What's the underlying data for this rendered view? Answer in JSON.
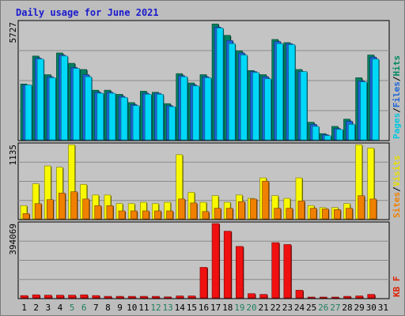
{
  "chart_data": {
    "type": "bar",
    "title": "Daily usage for June 2021",
    "categories": [
      "1",
      "2",
      "3",
      "4",
      "5",
      "6",
      "7",
      "8",
      "9",
      "10",
      "11",
      "12",
      "13",
      "14",
      "15",
      "16",
      "17",
      "18",
      "19",
      "20",
      "21",
      "22",
      "23",
      "24",
      "25",
      "26",
      "27",
      "28",
      "29",
      "30",
      "31"
    ],
    "weekend_days": [
      "5",
      "6",
      "12",
      "13",
      "19",
      "20",
      "26",
      "27"
    ],
    "panels": [
      {
        "name": "pages-files-hits",
        "max_label": "5727",
        "ymax": 5727,
        "legend": [
          {
            "text": "Pages",
            "color": "#00c8e0"
          },
          {
            "text": "/",
            "color": "#000000"
          },
          {
            "text": "Files",
            "color": "#1e64d8"
          },
          {
            "text": "/",
            "color": "#000000"
          },
          {
            "text": "Hits",
            "color": "#008860"
          }
        ],
        "series": [
          {
            "name": "Hits",
            "color": "#008060",
            "values": [
              2700,
              4050,
              3150,
              4200,
              3700,
              3400,
              2400,
              2400,
              2200,
              1800,
              2350,
              2300,
              1750,
              3200,
              2750,
              3150,
              5600,
              5050,
              4300,
              3350,
              3150,
              4850,
              4700,
              3400,
              850,
              300,
              650,
              1000,
              3000,
              4100,
              0
            ]
          },
          {
            "name": "Files",
            "color": "#1e64d8",
            "values": [
              2650,
              3950,
              3050,
              4100,
              3500,
              3150,
              2300,
              2300,
              2100,
              1700,
              2250,
              2250,
              1650,
              3100,
              2650,
              3050,
              5450,
              4800,
              4200,
              3300,
              3050,
              4750,
              4650,
              3300,
              750,
              250,
              550,
              900,
              2850,
              4000,
              0
            ]
          },
          {
            "name": "Pages",
            "color": "#00d8f8",
            "values": [
              2650,
              3900,
              3000,
              4050,
              3450,
              3050,
              2250,
              2250,
              2050,
              1650,
              2200,
              2200,
              1600,
              3050,
              2600,
              3000,
              5400,
              4650,
              4100,
              3250,
              2950,
              4650,
              4600,
              3300,
              650,
              200,
              500,
              750,
              2800,
              3900,
              0
            ]
          }
        ]
      },
      {
        "name": "sites-visits",
        "max_label": "1135",
        "ymax": 1135,
        "legend": [
          {
            "text": "Sites",
            "color": "#f08000"
          },
          {
            "text": "/",
            "color": "#000000"
          },
          {
            "text": "Visits",
            "color": "#e8e000"
          }
        ],
        "series": [
          {
            "name": "Visits",
            "color": "#f8f800",
            "values": [
              200,
              530,
              800,
              780,
              1120,
              520,
              360,
              360,
              230,
              230,
              250,
              230,
              250,
              970,
              400,
              250,
              350,
              250,
              360,
              310,
              620,
              350,
              310,
              620,
              200,
              170,
              170,
              230,
              1120,
              1070,
              0
            ]
          },
          {
            "name": "Sites",
            "color": "#f08000",
            "values": [
              80,
              230,
              290,
              390,
              410,
              300,
              200,
              200,
              120,
              120,
              120,
              120,
              120,
              300,
              240,
              110,
              160,
              160,
              260,
              300,
              570,
              160,
              160,
              270,
              160,
              150,
              140,
              160,
              350,
              300,
              0
            ]
          }
        ]
      },
      {
        "name": "kb-f",
        "max_label": "394069",
        "ymax": 394069,
        "legend": [
          {
            "text": "KB F",
            "color": "#e02000"
          }
        ],
        "series": [
          {
            "name": "KB F",
            "color": "#f01010",
            "values": [
              12000,
              16000,
              14000,
              14000,
              14000,
              16000,
              12000,
              8000,
              8000,
              8000,
              8000,
              8000,
              5000,
              10000,
              10000,
              160000,
              390000,
              350000,
              270000,
              22000,
              18000,
              290000,
              280000,
              40000,
              4000,
              4000,
              4000,
              8000,
              10000,
              18000,
              0
            ]
          }
        ]
      }
    ]
  }
}
